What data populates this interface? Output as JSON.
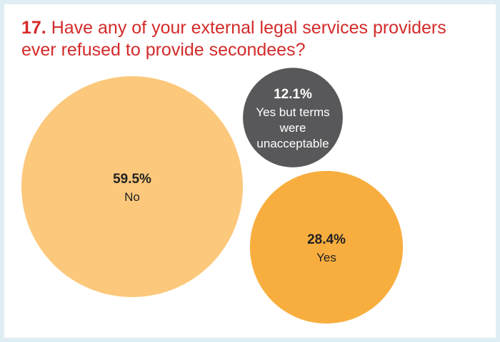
{
  "title": {
    "number": "17.",
    "text": "Have any of your external legal services providers ever refused to provide secondees?",
    "color": "#d42a2a"
  },
  "chart_data": {
    "type": "bubble",
    "title": "17. Have any of your external legal services providers ever refused to provide secondees?",
    "slices": [
      {
        "label": "No",
        "value": 59.5,
        "display": "59.5%",
        "color": "#fcc87b",
        "text_color": "#222222"
      },
      {
        "label": "Yes",
        "value": 28.4,
        "display": "28.4%",
        "color": "#f8ae3f",
        "text_color": "#222222"
      },
      {
        "label": "Yes but terms were unacceptable",
        "label_lines": [
          "Yes but terms",
          "were",
          "unacceptable"
        ],
        "value": 12.1,
        "display": "12.1%",
        "color": "#58585a",
        "text_color": "#ffffff"
      }
    ]
  }
}
